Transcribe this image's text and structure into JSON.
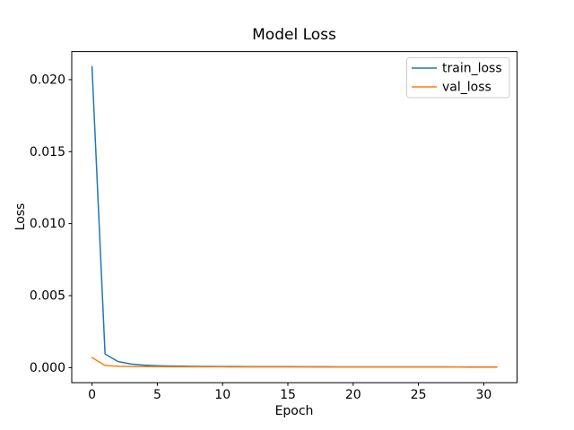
{
  "chart_data": {
    "type": "line",
    "title": "Model Loss",
    "xlabel": "Epoch",
    "ylabel": "Loss",
    "grid": false,
    "legend_position": "upper right",
    "xlim": [
      -1.55,
      32.55
    ],
    "ylim": [
      -0.001045,
      0.021945
    ],
    "xticks": [
      {
        "value": 0,
        "label": "0"
      },
      {
        "value": 5,
        "label": "5"
      },
      {
        "value": 10,
        "label": "10"
      },
      {
        "value": 15,
        "label": "15"
      },
      {
        "value": 20,
        "label": "20"
      },
      {
        "value": 25,
        "label": "25"
      },
      {
        "value": 30,
        "label": "30"
      }
    ],
    "yticks": [
      {
        "value": 0.0,
        "label": "0.000"
      },
      {
        "value": 0.005,
        "label": "0.005"
      },
      {
        "value": 0.01,
        "label": "0.010"
      },
      {
        "value": 0.015,
        "label": "0.015"
      },
      {
        "value": 0.02,
        "label": "0.020"
      }
    ],
    "x": [
      0,
      1,
      2,
      3,
      4,
      5,
      6,
      7,
      8,
      9,
      10,
      11,
      12,
      13,
      14,
      15,
      16,
      17,
      18,
      19,
      20,
      21,
      22,
      23,
      24,
      25,
      26,
      27,
      28,
      29,
      30,
      31
    ],
    "series": [
      {
        "name": "train_loss",
        "color": "#1f77b4",
        "values": [
          0.0209,
          0.00095,
          0.00042,
          0.00025,
          0.00017,
          0.00013,
          0.00011,
          0.0001,
          9e-05,
          8.5e-05,
          8e-05,
          7.8e-05,
          7.5e-05,
          7.2e-05,
          7e-05,
          6.8e-05,
          6.6e-05,
          6.4e-05,
          6.2e-05,
          6e-05,
          5.9e-05,
          5.8e-05,
          5.7e-05,
          5.6e-05,
          5.5e-05,
          5.4e-05,
          5.3e-05,
          5.2e-05,
          5.1e-05,
          5e-05,
          5e-05,
          4.9e-05
        ]
      },
      {
        "name": "val_loss",
        "color": "#ff7f0e",
        "values": [
          0.0007,
          0.00015,
          0.0001,
          8e-05,
          7e-05,
          6.5e-05,
          6e-05,
          5.8e-05,
          5.6e-05,
          5.4e-05,
          5.2e-05,
          5e-05,
          4.9e-05,
          4.8e-05,
          4.7e-05,
          4.6e-05,
          4.5e-05,
          4.4e-05,
          4.3e-05,
          4.2e-05,
          4.1e-05,
          4e-05,
          4e-05,
          3.9e-05,
          3.9e-05,
          3.8e-05,
          3.8e-05,
          3.7e-05,
          3.7e-05,
          3.6e-05,
          3.6e-05,
          3.5e-05
        ]
      }
    ]
  }
}
